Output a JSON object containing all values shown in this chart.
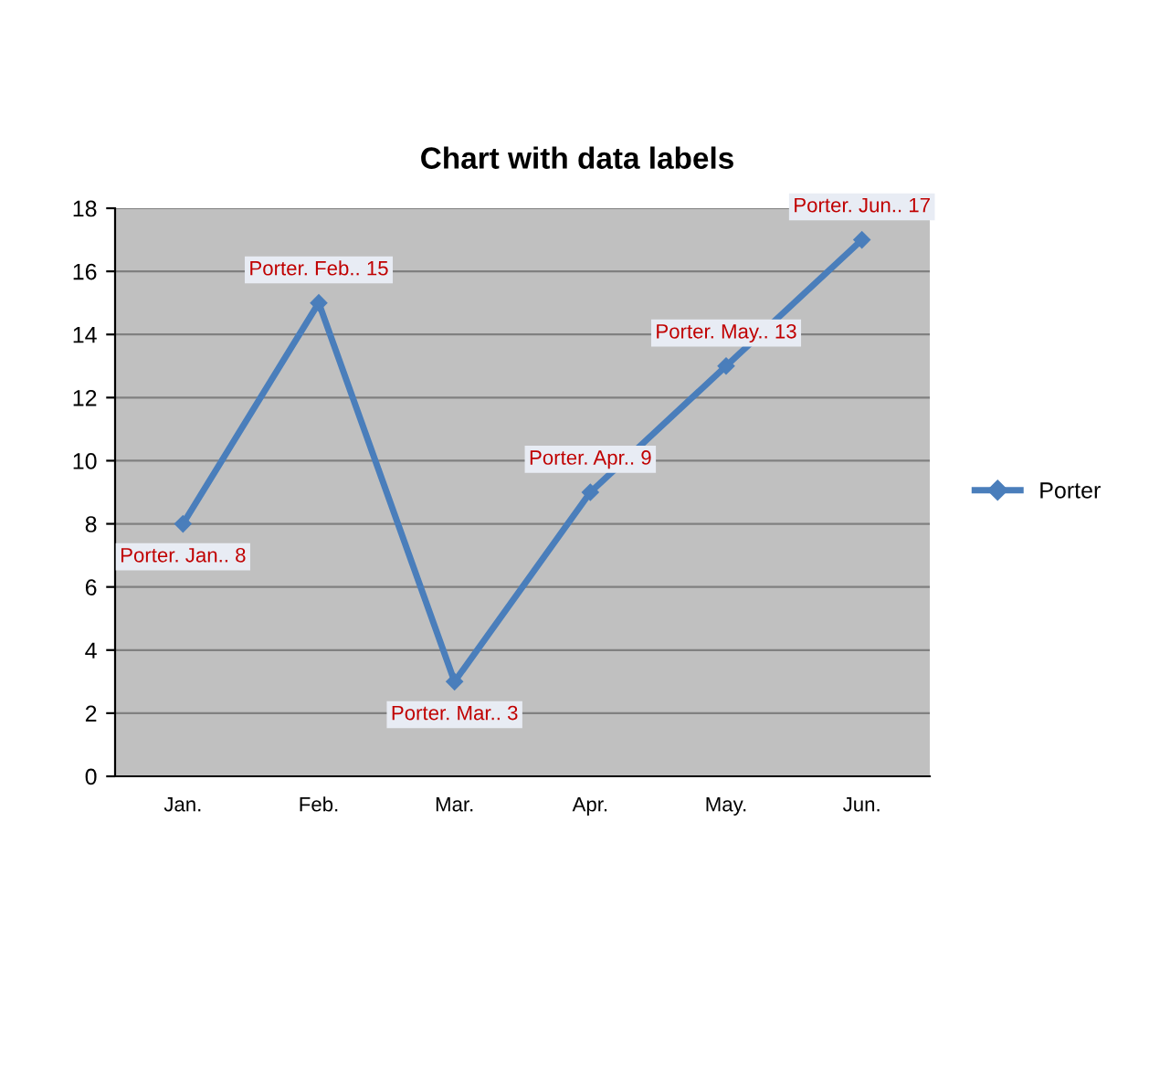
{
  "chart_data": {
    "type": "line",
    "title": "Chart with data labels",
    "categories": [
      "Jan.",
      "Feb.",
      "Mar.",
      "Apr.",
      "May.",
      "Jun."
    ],
    "series": [
      {
        "name": "Porter",
        "color": "#4a7ebb",
        "values": [
          8,
          15,
          3,
          9,
          13,
          17
        ],
        "value_labels": [
          "Porter. Jan.. 8",
          "Porter. Feb.. 15",
          "Porter. Mar.. 3",
          "Porter. Apr.. 9",
          "Porter. May.. 13",
          "Porter. Jun.. 17"
        ]
      }
    ],
    "ylim": [
      0,
      18
    ],
    "yticks": [
      0,
      2,
      4,
      6,
      8,
      10,
      12,
      14,
      16,
      18
    ],
    "grid": "y",
    "legend": "right",
    "marker": "diamond",
    "line_style": "solid"
  }
}
